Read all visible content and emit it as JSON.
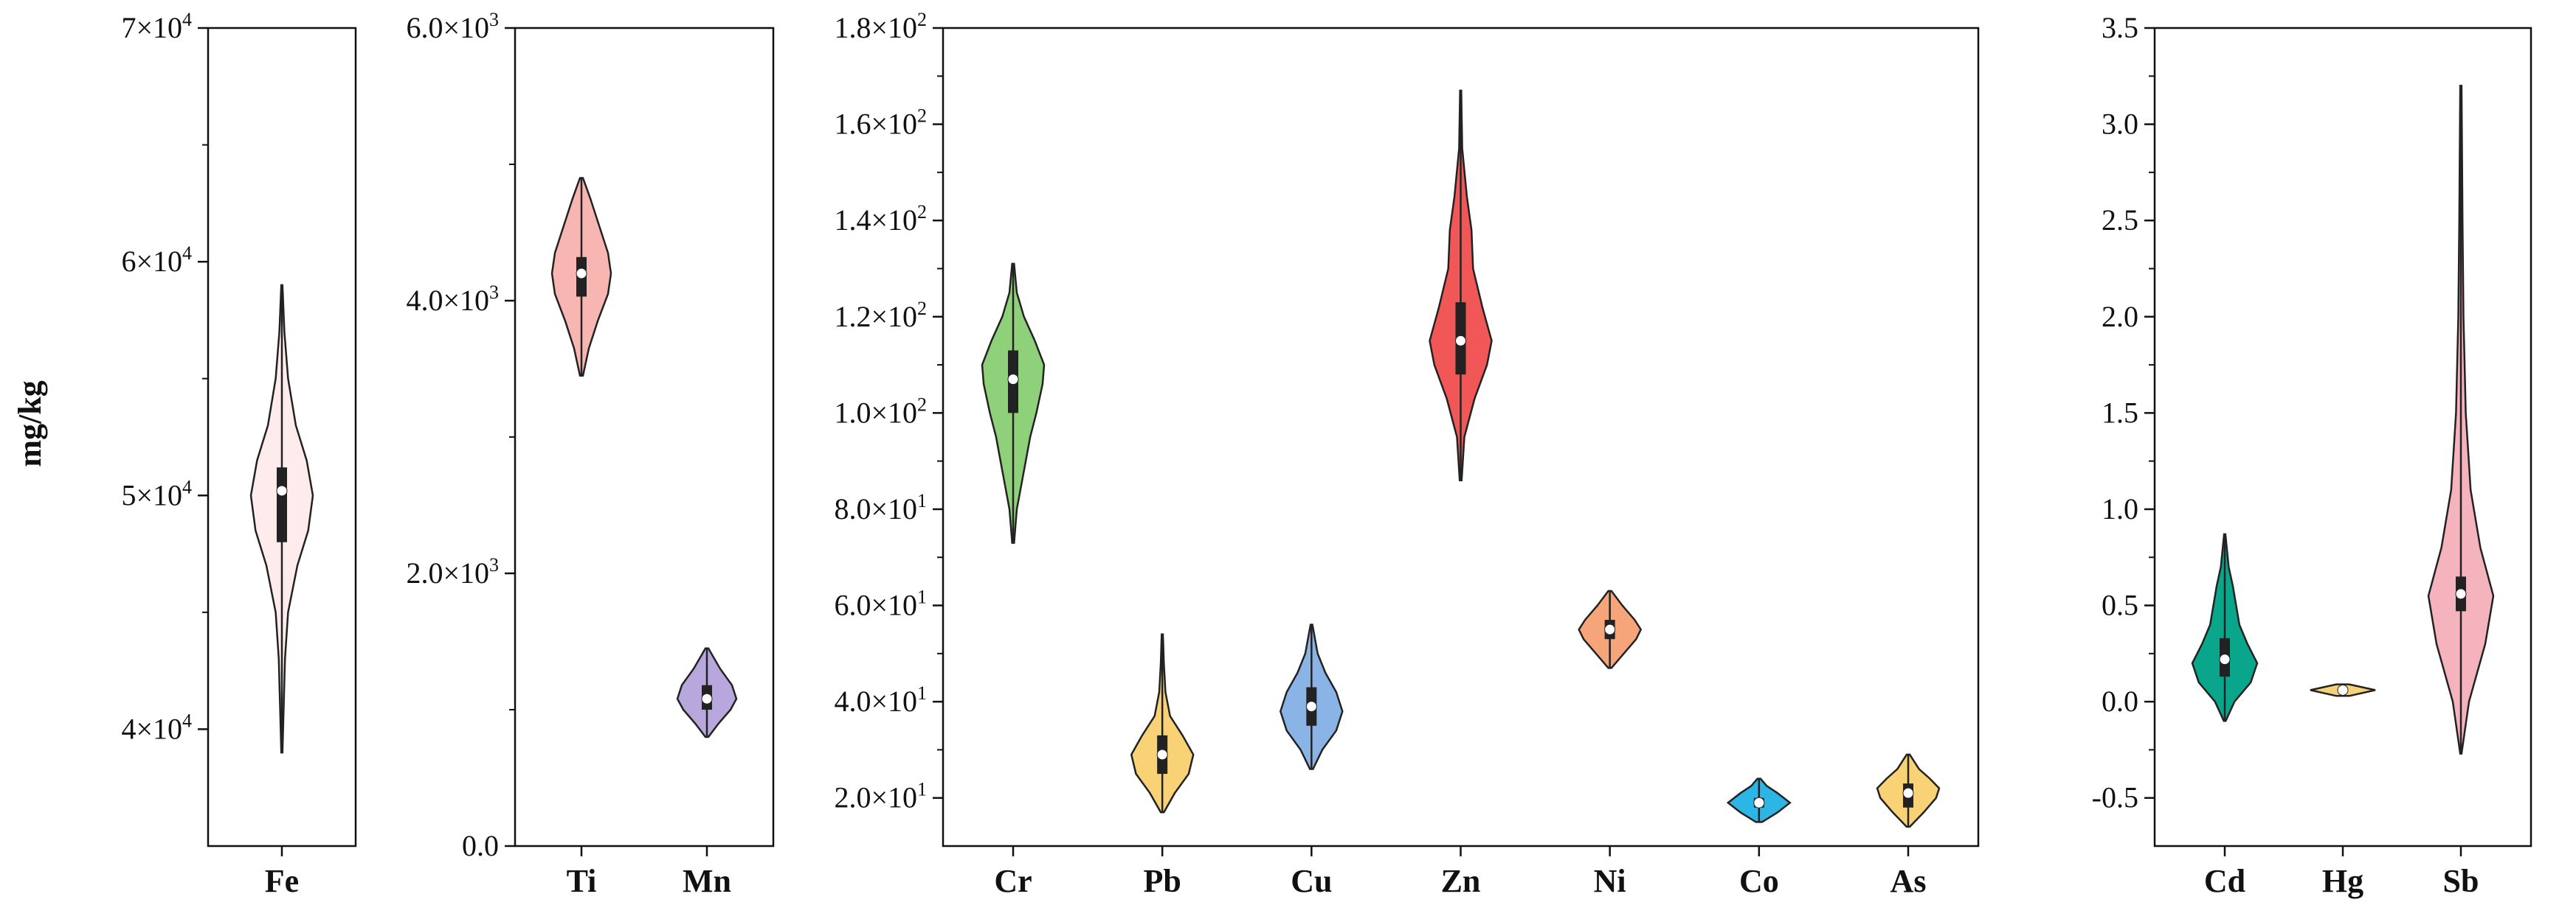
{
  "chart_data": {
    "type": "violin",
    "ylabel": "mg/kg",
    "panels": [
      {
        "ylim": [
          35000,
          70000
        ],
        "yticks": [
          {
            "v": 40000,
            "m": "4",
            "e": "4"
          },
          {
            "v": 50000,
            "m": "5",
            "e": "4"
          },
          {
            "v": 60000,
            "m": "6",
            "e": "4"
          },
          {
            "v": 70000,
            "m": "7",
            "e": "4"
          }
        ],
        "tick_format": "sci",
        "categories": [
          "Fe"
        ],
        "series": [
          {
            "name": "Fe",
            "color": "#fdeceb",
            "min": 39000,
            "max": 59000,
            "q1": 48000,
            "median": 50200,
            "q3": 51200,
            "shape": [
              [
                39000,
                0.02
              ],
              [
                41000,
                0.06
              ],
              [
                43000,
                0.1
              ],
              [
                45000,
                0.2
              ],
              [
                47000,
                0.5
              ],
              [
                48500,
                0.85
              ],
              [
                50000,
                1.0
              ],
              [
                51500,
                0.8
              ],
              [
                53000,
                0.45
              ],
              [
                55000,
                0.2
              ],
              [
                57000,
                0.08
              ],
              [
                59000,
                0.02
              ]
            ]
          }
        ]
      },
      {
        "ylim": [
          0,
          6000
        ],
        "yticks": [
          {
            "v": 0,
            "m": "0.0",
            "e": ""
          },
          {
            "v": 2000,
            "m": "2.0",
            "e": "3"
          },
          {
            "v": 4000,
            "m": "4.0",
            "e": "3"
          },
          {
            "v": 6000,
            "m": "6.0",
            "e": "3"
          }
        ],
        "tick_format": "sci",
        "categories": [
          "Ti",
          "Mn"
        ],
        "series": [
          {
            "name": "Ti",
            "color": "#f7b6b1",
            "min": 3450,
            "max": 4900,
            "q1": 4030,
            "median": 4200,
            "q3": 4320,
            "shape": [
              [
                3450,
                0.05
              ],
              [
                3650,
                0.25
              ],
              [
                3850,
                0.55
              ],
              [
                4050,
                0.9
              ],
              [
                4200,
                1.0
              ],
              [
                4350,
                0.9
              ],
              [
                4550,
                0.6
              ],
              [
                4750,
                0.3
              ],
              [
                4900,
                0.05
              ]
            ]
          },
          {
            "name": "Mn",
            "color": "#b8a7dc",
            "min": 800,
            "max": 1450,
            "q1": 1000,
            "median": 1080,
            "q3": 1180,
            "shape": [
              [
                800,
                0.05
              ],
              [
                900,
                0.4
              ],
              [
                1000,
                0.8
              ],
              [
                1080,
                1.0
              ],
              [
                1180,
                0.85
              ],
              [
                1300,
                0.45
              ],
              [
                1450,
                0.05
              ]
            ]
          }
        ]
      },
      {
        "ylim": [
          10,
          180
        ],
        "yticks": [
          {
            "v": 20,
            "m": "2.0",
            "e": "1"
          },
          {
            "v": 40,
            "m": "4.0",
            "e": "1"
          },
          {
            "v": 60,
            "m": "6.0",
            "e": "1"
          },
          {
            "v": 80,
            "m": "8.0",
            "e": "1"
          },
          {
            "v": 100,
            "m": "1.0",
            "e": "2"
          },
          {
            "v": 120,
            "m": "1.2",
            "e": "2"
          },
          {
            "v": 140,
            "m": "1.4",
            "e": "2"
          },
          {
            "v": 160,
            "m": "1.6",
            "e": "2"
          },
          {
            "v": 180,
            "m": "1.8",
            "e": "2"
          }
        ],
        "tick_format": "sci",
        "categories": [
          "Cr",
          "Pb",
          "Cu",
          "Zn",
          "Ni",
          "Co",
          "As"
        ],
        "series": [
          {
            "name": "Cr",
            "color": "#8fd17a",
            "min": 73,
            "max": 131,
            "q1": 100,
            "median": 107,
            "q3": 113,
            "shape": [
              [
                73,
                0.03
              ],
              [
                80,
                0.12
              ],
              [
                88,
                0.35
              ],
              [
                95,
                0.55
              ],
              [
                100,
                0.75
              ],
              [
                106,
                0.95
              ],
              [
                110,
                1.0
              ],
              [
                115,
                0.7
              ],
              [
                120,
                0.35
              ],
              [
                125,
                0.12
              ],
              [
                131,
                0.03
              ]
            ]
          },
          {
            "name": "Pb",
            "color": "#f9d275",
            "min": 17,
            "max": 54,
            "q1": 25,
            "median": 29,
            "q3": 33,
            "shape": [
              [
                17,
                0.05
              ],
              [
                21,
                0.4
              ],
              [
                25,
                0.85
              ],
              [
                29,
                1.0
              ],
              [
                33,
                0.65
              ],
              [
                37,
                0.25
              ],
              [
                42,
                0.1
              ],
              [
                48,
                0.05
              ],
              [
                54,
                0.02
              ]
            ]
          },
          {
            "name": "Cu",
            "color": "#8ab4e6",
            "min": 26,
            "max": 56,
            "q1": 35,
            "median": 39,
            "q3": 43,
            "shape": [
              [
                26,
                0.05
              ],
              [
                30,
                0.35
              ],
              [
                34,
                0.8
              ],
              [
                38,
                1.0
              ],
              [
                42,
                0.8
              ],
              [
                46,
                0.45
              ],
              [
                50,
                0.2
              ],
              [
                56,
                0.03
              ]
            ]
          },
          {
            "name": "Zn",
            "color": "#f25757",
            "min": 86,
            "max": 167,
            "q1": 108,
            "median": 115,
            "q3": 123,
            "shape": [
              [
                86,
                0.03
              ],
              [
                95,
                0.12
              ],
              [
                103,
                0.45
              ],
              [
                110,
                0.85
              ],
              [
                115,
                1.0
              ],
              [
                122,
                0.7
              ],
              [
                130,
                0.4
              ],
              [
                138,
                0.35
              ],
              [
                145,
                0.2
              ],
              [
                155,
                0.05
              ],
              [
                167,
                0.02
              ]
            ]
          },
          {
            "name": "Ni",
            "color": "#f6a57a",
            "min": 47,
            "max": 63,
            "q1": 53,
            "median": 55,
            "q3": 57,
            "shape": [
              [
                47,
                0.05
              ],
              [
                50,
                0.45
              ],
              [
                53,
                0.85
              ],
              [
                55,
                1.0
              ],
              [
                57,
                0.8
              ],
              [
                60,
                0.4
              ],
              [
                63,
                0.05
              ]
            ]
          },
          {
            "name": "Co",
            "color": "#2bb6e6",
            "min": 15,
            "max": 24,
            "q1": 18,
            "median": 19,
            "q3": 20,
            "shape": [
              [
                15,
                0.1
              ],
              [
                17,
                0.6
              ],
              [
                19,
                1.0
              ],
              [
                21,
                0.6
              ],
              [
                22.5,
                0.25
              ],
              [
                24,
                0.05
              ]
            ]
          },
          {
            "name": "As",
            "color": "#f9d275",
            "min": 14,
            "max": 29,
            "q1": 18,
            "median": 21,
            "q3": 23,
            "shape": [
              [
                14,
                0.05
              ],
              [
                17,
                0.5
              ],
              [
                20,
                0.9
              ],
              [
                22,
                1.0
              ],
              [
                24,
                0.7
              ],
              [
                26,
                0.35
              ],
              [
                29,
                0.05
              ]
            ]
          }
        ]
      },
      {
        "ylim": [
          -0.75,
          3.5
        ],
        "yticks": [
          {
            "v": -0.5,
            "m": "-0.5",
            "e": ""
          },
          {
            "v": 0,
            "m": "0.0",
            "e": ""
          },
          {
            "v": 0.5,
            "m": "0.5",
            "e": ""
          },
          {
            "v": 1.0,
            "m": "1.0",
            "e": ""
          },
          {
            "v": 1.5,
            "m": "1.5",
            "e": ""
          },
          {
            "v": 2.0,
            "m": "2.0",
            "e": ""
          },
          {
            "v": 2.5,
            "m": "2.5",
            "e": ""
          },
          {
            "v": 3.0,
            "m": "3.0",
            "e": ""
          },
          {
            "v": 3.5,
            "m": "3.5",
            "e": ""
          }
        ],
        "tick_format": "plain",
        "categories": [
          "Cd",
          "Hg",
          "Sb"
        ],
        "series": [
          {
            "name": "Cd",
            "color": "#0aa68c",
            "min": -0.1,
            "max": 0.87,
            "q1": 0.13,
            "median": 0.22,
            "q3": 0.33,
            "shape": [
              [
                -0.1,
                0.03
              ],
              [
                0.0,
                0.3
              ],
              [
                0.1,
                0.8
              ],
              [
                0.2,
                1.0
              ],
              [
                0.3,
                0.7
              ],
              [
                0.4,
                0.45
              ],
              [
                0.5,
                0.35
              ],
              [
                0.6,
                0.25
              ],
              [
                0.7,
                0.12
              ],
              [
                0.87,
                0.02
              ]
            ]
          },
          {
            "name": "Hg",
            "color": "#f4d27a",
            "min": 0.03,
            "max": 0.09,
            "q1": 0.05,
            "median": 0.06,
            "q3": 0.07,
            "shape": [
              [
                0.03,
                0.2
              ],
              [
                0.06,
                1.0
              ],
              [
                0.09,
                0.2
              ]
            ]
          },
          {
            "name": "Sb",
            "color": "#f5b3bd",
            "min": -0.27,
            "max": 3.2,
            "q1": 0.47,
            "median": 0.56,
            "q3": 0.65,
            "shape": [
              [
                -0.27,
                0.02
              ],
              [
                0.0,
                0.25
              ],
              [
                0.3,
                0.75
              ],
              [
                0.55,
                1.0
              ],
              [
                0.8,
                0.6
              ],
              [
                1.1,
                0.3
              ],
              [
                1.5,
                0.15
              ],
              [
                2.0,
                0.08
              ],
              [
                2.5,
                0.05
              ],
              [
                3.2,
                0.02
              ]
            ]
          }
        ]
      }
    ]
  }
}
